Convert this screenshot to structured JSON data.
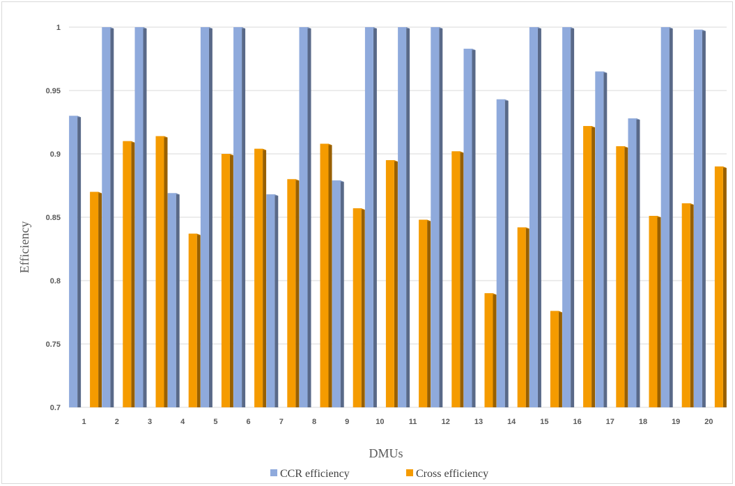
{
  "chart_data": {
    "type": "bar",
    "style": "3d-clustered-column",
    "categories": [
      "1",
      "2",
      "3",
      "4",
      "5",
      "6",
      "7",
      "8",
      "9",
      "10",
      "11",
      "12",
      "13",
      "14",
      "15",
      "16",
      "17",
      "18",
      "19",
      "20"
    ],
    "series": [
      {
        "name": "CCR efficiency",
        "color": "#8faadc",
        "values": [
          0.93,
          1.0,
          1.0,
          0.869,
          1.0,
          1.0,
          0.868,
          1.0,
          0.879,
          1.0,
          1.0,
          1.0,
          0.983,
          0.943,
          1.0,
          1.0,
          0.965,
          0.928,
          1.0,
          0.998
        ]
      },
      {
        "name": "Cross efficiency",
        "color": "#f59b00",
        "values": [
          0.87,
          0.91,
          0.914,
          0.837,
          0.9,
          0.904,
          0.88,
          0.908,
          0.857,
          0.895,
          0.848,
          0.902,
          0.79,
          0.842,
          0.776,
          0.922,
          0.906,
          0.851,
          0.861,
          0.89
        ]
      }
    ],
    "xlabel": "DMUs",
    "ylabel": "Efficiency",
    "ylim": [
      0.7,
      1.0
    ],
    "yticks": [
      "0.7",
      "0.75",
      "0.8",
      "0.85",
      "0.9",
      "0.95",
      "1"
    ],
    "grid": true,
    "legend": "bottom"
  }
}
